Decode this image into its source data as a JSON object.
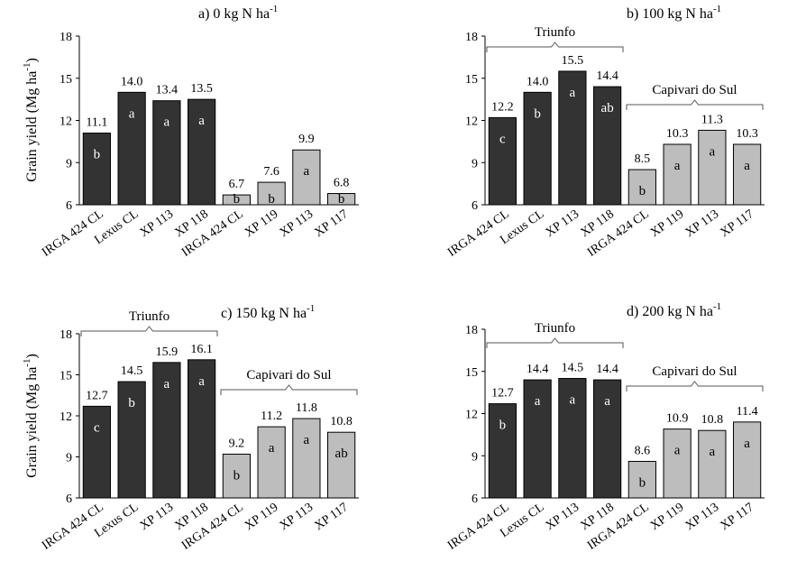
{
  "chart_data": [
    {
      "type": "bar",
      "title": "a)  0 kg N ha",
      "title_sup": "-1",
      "ylabel": "Grain yield (Mg ha",
      "ylabel_sup": "-1",
      "ylabel_close": ")",
      "ylim": [
        6,
        18
      ],
      "yticks": [
        "6",
        "9",
        "12",
        "15",
        "18"
      ],
      "groups": [],
      "categories": [
        "IRGA 424 CL",
        "Lexus CL",
        "XP 113",
        "XP 118",
        "IRGA 424 CL",
        "XP 119",
        "XP 113",
        "XP 117"
      ],
      "values": [
        11.1,
        14.0,
        13.4,
        13.5,
        6.7,
        7.6,
        9.9,
        6.8
      ],
      "value_labels": [
        "11.1",
        "14.0",
        "13.4",
        "13.5",
        "6.7",
        "7.6",
        "9.9",
        "6.8"
      ],
      "letters": [
        "b",
        "a",
        "a",
        "a",
        "b",
        "b",
        "a",
        "b"
      ],
      "series_colors": [
        "#333333",
        "#333333",
        "#333333",
        "#333333",
        "#bdbdbd",
        "#bdbdbd",
        "#bdbdbd",
        "#bdbdbd"
      ]
    },
    {
      "type": "bar",
      "title": "b)  100 kg N ha",
      "title_sup": "-1",
      "ylabel": "",
      "ylim": [
        6,
        18
      ],
      "yticks": [
        "6",
        "9",
        "12",
        "15",
        "18"
      ],
      "groups": [
        {
          "name": "Triunfo",
          "start": 0,
          "end": 3
        },
        {
          "name": "Capivari do Sul",
          "start": 4,
          "end": 7
        }
      ],
      "categories": [
        "IRGA 424 CL",
        "Lexus CL",
        "XP 113",
        "XP 118",
        "IRGA 424 CL",
        "XP 119",
        "XP 113",
        "XP 117"
      ],
      "values": [
        12.2,
        14.0,
        15.5,
        14.4,
        8.5,
        10.3,
        11.3,
        10.3
      ],
      "value_labels": [
        "12.2",
        "14.0",
        "15.5",
        "14.4",
        "8.5",
        "10.3",
        "11.3",
        "10.3"
      ],
      "letters": [
        "c",
        "b",
        "a",
        "ab",
        "b",
        "a",
        "a",
        "a"
      ],
      "series_colors": [
        "#333333",
        "#333333",
        "#333333",
        "#333333",
        "#bdbdbd",
        "#bdbdbd",
        "#bdbdbd",
        "#bdbdbd"
      ]
    },
    {
      "type": "bar",
      "title": "c)  150 kg N ha",
      "title_sup": "-1",
      "ylabel": "Grain yield (Mg ha",
      "ylabel_sup": "-1",
      "ylabel_close": ")",
      "ylim": [
        6,
        18
      ],
      "yticks": [
        "6",
        "9",
        "12",
        "15",
        "18"
      ],
      "groups": [
        {
          "name": "Triunfo",
          "start": 0,
          "end": 3
        },
        {
          "name": "Capivari do Sul",
          "start": 4,
          "end": 7
        }
      ],
      "categories": [
        "IRGA 424 CL",
        "Lexus CL",
        "XP 113",
        "XP 118",
        "IRGA 424 CL",
        "XP 119",
        "XP 113",
        "XP 117"
      ],
      "values": [
        12.7,
        14.5,
        15.9,
        16.1,
        9.2,
        11.2,
        11.8,
        10.8
      ],
      "value_labels": [
        "12.7",
        "14.5",
        "15.9",
        "16.1",
        "9.2",
        "11.2",
        "11.8",
        "10.8"
      ],
      "letters": [
        "c",
        "b",
        "a",
        "a",
        "b",
        "a",
        "a",
        "ab"
      ],
      "series_colors": [
        "#333333",
        "#333333",
        "#333333",
        "#333333",
        "#bdbdbd",
        "#bdbdbd",
        "#bdbdbd",
        "#bdbdbd"
      ]
    },
    {
      "type": "bar",
      "title": "d)  200 kg N ha",
      "title_sup": "-1",
      "ylabel": "",
      "ylim": [
        6,
        18
      ],
      "yticks": [
        "6",
        "9",
        "12",
        "15",
        "18"
      ],
      "groups": [
        {
          "name": "Triunfo",
          "start": 0,
          "end": 3
        },
        {
          "name": "Capivari do Sul",
          "start": 4,
          "end": 7
        }
      ],
      "categories": [
        "IRGA 424 CL",
        "Lexus CL",
        "XP 113",
        "XP 118",
        "IRGA 424 CL",
        "XP 119",
        "XP 113",
        "XP 117"
      ],
      "values": [
        12.7,
        14.4,
        14.5,
        14.4,
        8.6,
        10.9,
        10.8,
        11.4
      ],
      "value_labels": [
        "12.7",
        "14.4",
        "14.5",
        "14.4",
        "8.6",
        "10.9",
        "10.8",
        "11.4"
      ],
      "letters": [
        "b",
        "a",
        "a",
        "a",
        "b",
        "a",
        "a",
        "a"
      ],
      "series_colors": [
        "#333333",
        "#333333",
        "#333333",
        "#333333",
        "#bdbdbd",
        "#bdbdbd",
        "#bdbdbd",
        "#bdbdbd"
      ]
    }
  ]
}
